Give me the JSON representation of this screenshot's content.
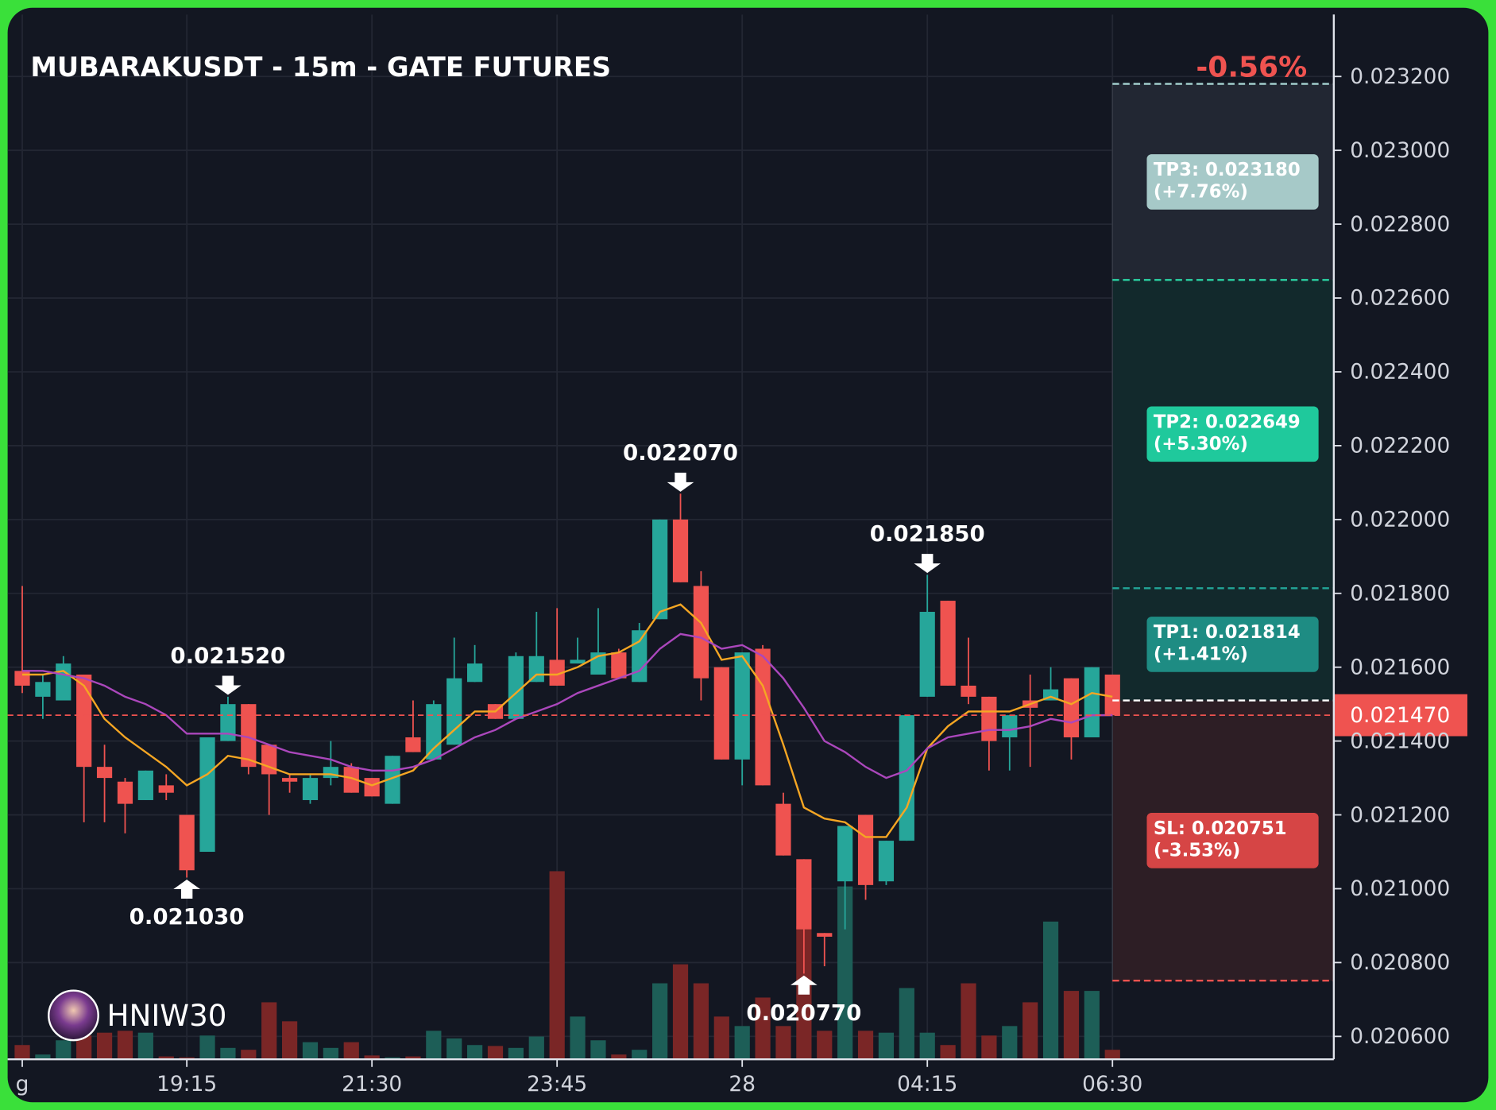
{
  "chart_data": {
    "type": "candlestick",
    "title": "MUBARAKUSDT - 15m - GATE FUTURES",
    "change": "-0.56%",
    "change_color": "#ef5350",
    "watermark": "HNIW30",
    "categories": [
      "g",
      null,
      null,
      null,
      null,
      null,
      null,
      null,
      "19:15",
      null,
      null,
      null,
      null,
      null,
      null,
      null,
      null,
      "21:30",
      null,
      null,
      null,
      null,
      null,
      null,
      null,
      null,
      "23:45",
      null,
      null,
      null,
      null,
      null,
      null,
      null,
      null,
      "28",
      null,
      null,
      null,
      null,
      null,
      null,
      null,
      null,
      "04:15",
      null,
      null,
      null,
      null,
      null,
      null,
      null,
      null,
      "06:30"
    ],
    "open": [
      0.02159,
      0.02152,
      0.02151,
      0.02158,
      0.02133,
      0.02129,
      0.02124,
      0.02128,
      0.0212,
      0.0211,
      0.0214,
      0.0215,
      0.02139,
      0.0213,
      0.02124,
      0.0213,
      0.02133,
      0.0213,
      0.02123,
      0.02141,
      0.02135,
      0.02139,
      0.02156,
      0.0215,
      0.02146,
      0.02156,
      0.02162,
      0.02161,
      0.02158,
      0.02164,
      0.02156,
      0.02173,
      0.022,
      0.02182,
      0.0216,
      0.02135,
      0.02165,
      0.02123,
      0.02108,
      0.02088,
      0.02102,
      0.0212,
      0.02102,
      0.02113,
      0.02152,
      0.02178,
      0.02155,
      0.02152,
      0.02141,
      0.02151,
      0.02151,
      0.02157,
      0.02141,
      0.02158
    ],
    "high": [
      0.02182,
      0.02158,
      0.02163,
      0.02158,
      0.02139,
      0.0213,
      0.02132,
      0.02131,
      0.0212,
      0.02141,
      0.02152,
      0.0215,
      0.02139,
      0.02131,
      0.02131,
      0.0214,
      0.02134,
      0.0213,
      0.02136,
      0.02151,
      0.02151,
      0.02168,
      0.02166,
      0.0215,
      0.02164,
      0.02175,
      0.02176,
      0.02168,
      0.02176,
      0.02165,
      0.02172,
      0.022,
      0.02207,
      0.02186,
      0.0216,
      0.02164,
      0.02166,
      0.02126,
      0.02108,
      0.02088,
      0.02117,
      0.0212,
      0.02113,
      0.02147,
      0.02185,
      0.02178,
      0.02168,
      0.02152,
      0.02147,
      0.02158,
      0.0216,
      0.02157,
      0.0216,
      0.02158
    ],
    "low": [
      0.02153,
      0.02146,
      0.02151,
      0.02118,
      0.02118,
      0.02115,
      0.02124,
      0.02124,
      0.02103,
      0.0211,
      0.0214,
      0.02131,
      0.0212,
      0.02126,
      0.02123,
      0.02128,
      0.02126,
      0.02125,
      0.02123,
      0.02137,
      0.02135,
      0.02139,
      0.02156,
      0.02146,
      0.02146,
      0.02156,
      0.02155,
      0.02161,
      0.02158,
      0.02157,
      0.02156,
      0.02173,
      0.02183,
      0.02151,
      0.02135,
      0.02128,
      0.02128,
      0.02109,
      0.02077,
      0.02079,
      0.02089,
      0.02097,
      0.02101,
      0.02113,
      0.02152,
      0.02155,
      0.0215,
      0.02132,
      0.02132,
      0.02133,
      0.02151,
      0.02135,
      0.02141,
      0.02147
    ],
    "close": [
      0.02155,
      0.02156,
      0.02161,
      0.02133,
      0.0213,
      0.02123,
      0.02132,
      0.02126,
      0.02105,
      0.02141,
      0.0215,
      0.02133,
      0.02131,
      0.02129,
      0.0213,
      0.02133,
      0.02126,
      0.02125,
      0.02136,
      0.02137,
      0.0215,
      0.02157,
      0.02161,
      0.02146,
      0.02163,
      0.02163,
      0.02155,
      0.02162,
      0.02164,
      0.02157,
      0.0217,
      0.022,
      0.02183,
      0.02157,
      0.02135,
      0.02164,
      0.02128,
      0.02109,
      0.02089,
      0.02087,
      0.02117,
      0.02101,
      0.02113,
      0.02147,
      0.02175,
      0.02155,
      0.02152,
      0.0214,
      0.02147,
      0.02149,
      0.02154,
      0.02141,
      0.0216,
      0.02147
    ],
    "volume": [
      15,
      5,
      20,
      25,
      28,
      30,
      28,
      3,
      2,
      25,
      12,
      10,
      60,
      40,
      18,
      12,
      18,
      4,
      2,
      3,
      30,
      22,
      15,
      14,
      12,
      24,
      198,
      45,
      20,
      5,
      10,
      80,
      100,
      80,
      45,
      35,
      65,
      35,
      140,
      30,
      182,
      30,
      28,
      75,
      28,
      15,
      80,
      25,
      35,
      60,
      145,
      72,
      72,
      10
    ],
    "vlim": [
      0,
      1100
    ],
    "up_color": "#26a69a",
    "down_color": "#ef5350",
    "volume_up_color": "#1d5e57",
    "volume_down_color": "#7a2626",
    "series": [
      {
        "color": "#f5a623",
        "values": [
          0.02158,
          0.02158,
          0.02159,
          0.02155,
          0.02146,
          0.02141,
          0.02137,
          0.02133,
          0.02128,
          0.02131,
          0.02136,
          0.02135,
          0.02133,
          0.02131,
          0.02131,
          0.02131,
          0.0213,
          0.02128,
          0.0213,
          0.02132,
          0.02138,
          0.02143,
          0.02148,
          0.02148,
          0.02153,
          0.02158,
          0.02158,
          0.0216,
          0.02163,
          0.02164,
          0.02167,
          0.02175,
          0.02177,
          0.02172,
          0.02162,
          0.02163,
          0.02155,
          0.02139,
          0.02122,
          0.02119,
          0.02118,
          0.02114,
          0.02114,
          0.02122,
          0.02138,
          0.02144,
          0.02148,
          0.02148,
          0.02148,
          0.0215,
          0.02152,
          0.0215,
          0.02153,
          0.02152
        ]
      },
      {
        "color": "#ab47bc",
        "values": [
          0.02159,
          0.02159,
          0.02158,
          0.02157,
          0.02155,
          0.02152,
          0.0215,
          0.02147,
          0.02142,
          0.02142,
          0.02142,
          0.02141,
          0.02139,
          0.02137,
          0.02136,
          0.02135,
          0.02133,
          0.02132,
          0.02132,
          0.02133,
          0.02135,
          0.02138,
          0.02141,
          0.02143,
          0.02146,
          0.02148,
          0.0215,
          0.02153,
          0.02155,
          0.02157,
          0.02159,
          0.02165,
          0.02169,
          0.02168,
          0.02165,
          0.02166,
          0.02163,
          0.02157,
          0.02149,
          0.0214,
          0.02137,
          0.02133,
          0.0213,
          0.02132,
          0.02138,
          0.02141,
          0.02142,
          0.02143,
          0.02143,
          0.02144,
          0.02146,
          0.02145,
          0.02147,
          0.02147
        ]
      }
    ],
    "ylim": [
      0.020538,
      0.023368
    ],
    "yticks": [
      {
        "value": 0.0206,
        "label": "0.020600"
      },
      {
        "value": 0.0208,
        "label": "0.020800"
      },
      {
        "value": 0.021,
        "label": "0.021000"
      },
      {
        "value": 0.0212,
        "label": "0.021200"
      },
      {
        "value": 0.0214,
        "label": "0.021400"
      },
      {
        "value": 0.0216,
        "label": "0.021600"
      },
      {
        "value": 0.0218,
        "label": "0.021800"
      },
      {
        "value": 0.022,
        "label": "0.022000"
      },
      {
        "value": 0.0222,
        "label": "0.022200"
      },
      {
        "value": 0.0224,
        "label": "0.022400"
      },
      {
        "value": 0.0226,
        "label": "0.022600"
      },
      {
        "value": 0.0228,
        "label": "0.022800"
      },
      {
        "value": 0.023,
        "label": "0.023000"
      },
      {
        "value": 0.0232,
        "label": "0.023200"
      }
    ],
    "grid": true,
    "annotations": [
      {
        "value": 0.02152,
        "label": "0.021520",
        "kind": "high"
      },
      {
        "value": 0.02103,
        "label": "0.021030",
        "kind": "low"
      },
      {
        "value": 0.02207,
        "label": "0.022070",
        "kind": "high"
      },
      {
        "value": 0.02077,
        "label": "0.020770",
        "kind": "low"
      },
      {
        "value": 0.02185,
        "label": "0.021850",
        "kind": "high"
      }
    ],
    "current_price": {
      "value": 0.02147,
      "label": "0.021470",
      "color": "#ef5350"
    },
    "entry": 0.02151,
    "levels": [
      {
        "text": "TP3: 0.023180",
        "change": "(+7.76%)",
        "value": 0.02318,
        "color": "#a6c9c8",
        "line_color": "#a6d4d2",
        "zone": "#222733"
      },
      {
        "text": "TP2: 0.022649",
        "change": "(+5.30%)",
        "value": 0.022649,
        "color": "#1fc99c",
        "line_color": "#2bd4a4",
        "zone": "#12292c"
      },
      {
        "text": "TP1: 0.021814",
        "change": "(+1.41%)",
        "value": 0.021814,
        "color": "#1e8c83",
        "line_color": "#22a597",
        "zone": "#12292c"
      },
      {
        "text": "SL: 0.020751",
        "change": "(-3.53%)",
        "value": 0.020751,
        "color": "#d64545",
        "line_color": "#ef5350",
        "zone": "#2d1e25"
      }
    ]
  }
}
